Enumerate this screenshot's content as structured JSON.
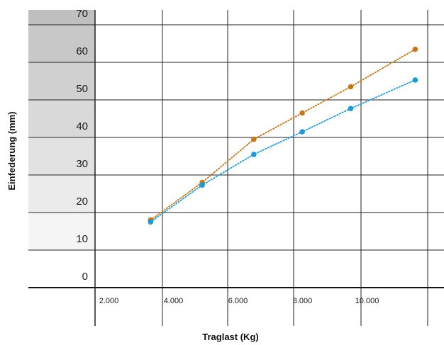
{
  "chart_data": {
    "type": "line",
    "xlabel": "Traglast (Kg)",
    "ylabel": "Einfederung (mm)",
    "xlim": [
      0,
      11000
    ],
    "ylim": [
      0,
      80
    ],
    "x_ticks": [
      2000,
      4000,
      6000,
      8000,
      10000
    ],
    "x_tick_labels": [
      "2.000",
      "4.000",
      "6.000",
      "8.000",
      "10.000"
    ],
    "y_ticks": [
      0,
      10,
      20,
      30,
      40,
      50,
      60,
      70
    ],
    "y_tick_labels": [
      "0",
      "10",
      "20",
      "30",
      "40",
      "50",
      "60",
      "70"
    ],
    "grid": true,
    "band_colors": [
      "#ffffff",
      "#f5f5f5",
      "#ececec",
      "#e2e2e2",
      "#d9d9d9",
      "#d0d0d0",
      "#c8c8c8",
      "#bfbfbf"
    ],
    "series": [
      {
        "color": "#c27818",
        "x": [
          1600,
          3200,
          4800,
          6300,
          7800,
          9800
        ],
        "y": [
          18.0,
          28.0,
          39.5,
          46.5,
          53.5,
          63.5
        ]
      },
      {
        "color": "#1f9ad6",
        "x": [
          1600,
          3200,
          4800,
          6300,
          7800,
          9800
        ],
        "y": [
          17.5,
          27.3,
          35.5,
          41.5,
          47.7,
          55.3
        ]
      }
    ]
  }
}
